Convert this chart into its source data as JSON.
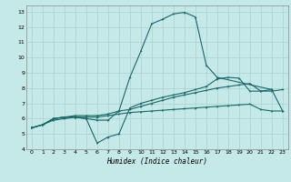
{
  "xlabel": "Humidex (Indice chaleur)",
  "bg_color": "#c5e8e8",
  "grid_color": "#aad0d0",
  "line_color": "#1a6868",
  "xlim": [
    -0.5,
    23.5
  ],
  "ylim": [
    4,
    13.4
  ],
  "xticks": [
    0,
    1,
    2,
    3,
    4,
    5,
    6,
    7,
    8,
    9,
    10,
    11,
    12,
    13,
    14,
    15,
    16,
    17,
    18,
    19,
    20,
    21,
    22,
    23
  ],
  "yticks": [
    4,
    5,
    6,
    7,
    8,
    9,
    10,
    11,
    12,
    13
  ],
  "series1_x": [
    0,
    1,
    2,
    3,
    4,
    5,
    6,
    7,
    8,
    9,
    10,
    11,
    12,
    13,
    14,
    15,
    16,
    17,
    22,
    23
  ],
  "series1_y": [
    5.4,
    5.6,
    6.0,
    6.1,
    6.1,
    6.0,
    5.9,
    5.9,
    6.5,
    8.7,
    10.4,
    12.2,
    12.5,
    12.85,
    12.95,
    12.65,
    9.5,
    8.7,
    7.9,
    6.5
  ],
  "series2_x": [
    0,
    1,
    2,
    3,
    4,
    5,
    6,
    7,
    8,
    9,
    10,
    11,
    12,
    13,
    14,
    15,
    16,
    17,
    18,
    19,
    20,
    21,
    22
  ],
  "series2_y": [
    5.4,
    5.6,
    6.0,
    6.1,
    6.1,
    6.0,
    4.4,
    4.8,
    5.0,
    6.7,
    7.0,
    7.2,
    7.4,
    7.55,
    7.7,
    7.9,
    8.1,
    8.6,
    8.7,
    8.65,
    7.8,
    7.8,
    7.9
  ],
  "series3_x": [
    0,
    1,
    2,
    3,
    4,
    5,
    6,
    7,
    8,
    9,
    10,
    11,
    12,
    13,
    14,
    15,
    16,
    17,
    18,
    19,
    20,
    21,
    22,
    23
  ],
  "series3_y": [
    5.4,
    5.6,
    6.0,
    6.1,
    6.2,
    6.2,
    6.2,
    6.3,
    6.5,
    6.6,
    6.8,
    7.0,
    7.2,
    7.4,
    7.55,
    7.7,
    7.85,
    8.0,
    8.1,
    8.2,
    8.3,
    7.8,
    7.8,
    7.9
  ],
  "series4_x": [
    0,
    1,
    2,
    3,
    4,
    5,
    6,
    7,
    8,
    9,
    10,
    11,
    12,
    13,
    14,
    15,
    16,
    17,
    18,
    19,
    20,
    21,
    22,
    23
  ],
  "series4_y": [
    5.4,
    5.6,
    5.9,
    6.0,
    6.1,
    6.1,
    6.1,
    6.2,
    6.3,
    6.4,
    6.45,
    6.5,
    6.55,
    6.6,
    6.65,
    6.7,
    6.75,
    6.8,
    6.85,
    6.9,
    6.95,
    6.6,
    6.5,
    6.5
  ]
}
